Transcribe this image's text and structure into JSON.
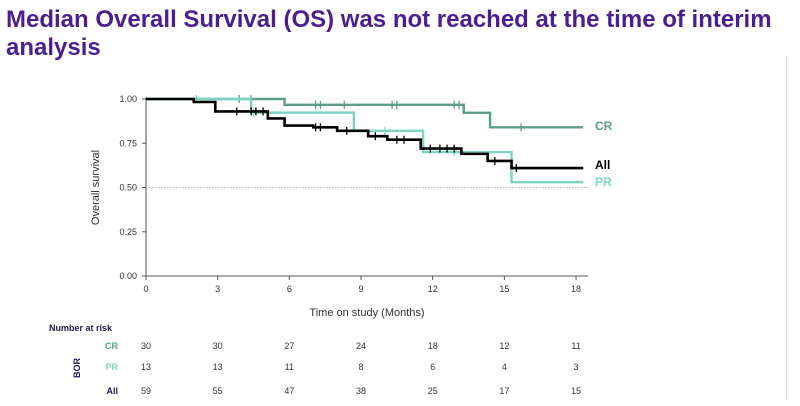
{
  "slide": {
    "title_line1": "Median Overall Survival (OS) was not reached at the time of interim",
    "title_line2": "analysis"
  },
  "colors": {
    "title": "#4b1f8e",
    "cr": "#5a9e8a",
    "pr": "#7ed3c3",
    "all": "#000000"
  },
  "chart_data": {
    "type": "line",
    "subtype": "kaplan-meier",
    "title": "",
    "xlabel": "Time on study (Months)",
    "ylabel": "Overall survival",
    "xlim": [
      0,
      18.5
    ],
    "ylim": [
      0,
      1.0
    ],
    "x_ticks": [
      "0",
      "3",
      "6",
      "9",
      "12",
      "15",
      "18"
    ],
    "y_ticks": [
      "0.00",
      "0.25",
      "0.50",
      "0.75",
      "1.00"
    ],
    "reference_line": 0.5,
    "grid": false,
    "series": [
      {
        "name": "CR",
        "color": "#5a9e8a",
        "steps": [
          [
            0,
            1.0
          ],
          [
            5.8,
            0.967
          ],
          [
            13.3,
            0.922
          ],
          [
            14.4,
            0.84
          ]
        ],
        "end_x": 18.3,
        "censors": [
          [
            2.1,
            1.0
          ],
          [
            3.9,
            1.0
          ],
          [
            4.4,
            1.0
          ],
          [
            7.1,
            0.967
          ],
          [
            7.3,
            0.967
          ],
          [
            8.3,
            0.967
          ],
          [
            10.3,
            0.967
          ],
          [
            10.5,
            0.967
          ],
          [
            12.9,
            0.967
          ],
          [
            13.1,
            0.967
          ],
          [
            15.7,
            0.84
          ]
        ]
      },
      {
        "name": "PR",
        "color": "#7ed3c3",
        "steps": [
          [
            0,
            1.0
          ],
          [
            4.4,
            0.923
          ],
          [
            8.7,
            0.82
          ],
          [
            11.6,
            0.7
          ],
          [
            15.3,
            0.53
          ]
        ],
        "end_x": 18.3,
        "censors": [
          [
            2.1,
            1.0
          ],
          [
            4.5,
            0.923
          ],
          [
            10.0,
            0.82
          ],
          [
            12.9,
            0.7
          ]
        ]
      },
      {
        "name": "All",
        "color": "#000000",
        "steps": [
          [
            0,
            1.0
          ],
          [
            2.0,
            0.983
          ],
          [
            2.9,
            0.93
          ],
          [
            5.1,
            0.89
          ],
          [
            5.8,
            0.85
          ],
          [
            7.0,
            0.84
          ],
          [
            8.0,
            0.82
          ],
          [
            9.3,
            0.79
          ],
          [
            10.1,
            0.77
          ],
          [
            11.5,
            0.72
          ],
          [
            13.2,
            0.69
          ],
          [
            14.3,
            0.65
          ],
          [
            15.3,
            0.61
          ]
        ],
        "end_x": 18.3,
        "censors": [
          [
            3.8,
            0.93
          ],
          [
            4.4,
            0.93
          ],
          [
            4.6,
            0.93
          ],
          [
            4.9,
            0.93
          ],
          [
            7.1,
            0.84
          ],
          [
            7.3,
            0.84
          ],
          [
            8.4,
            0.82
          ],
          [
            9.6,
            0.79
          ],
          [
            10.5,
            0.77
          ],
          [
            10.8,
            0.77
          ],
          [
            11.9,
            0.72
          ],
          [
            12.3,
            0.72
          ],
          [
            12.6,
            0.72
          ],
          [
            12.9,
            0.72
          ],
          [
            14.6,
            0.65
          ],
          [
            15.5,
            0.61
          ]
        ]
      }
    ]
  },
  "risk_table": {
    "title": "Number at risk",
    "group_label": "BOR",
    "times": [
      0,
      3,
      6,
      9,
      12,
      15,
      18
    ],
    "rows": [
      {
        "label": "CR",
        "color": "#5a9e8a",
        "values": [
          "30",
          "30",
          "27",
          "24",
          "18",
          "12",
          "11"
        ]
      },
      {
        "label": "PR",
        "color": "#7ed3c3",
        "values": [
          "13",
          "13",
          "11",
          "8",
          "6",
          "4",
          "3"
        ]
      },
      {
        "label": "All",
        "color": "#1a1a4e",
        "values": [
          "59",
          "55",
          "47",
          "38",
          "25",
          "17",
          "15"
        ]
      }
    ]
  }
}
